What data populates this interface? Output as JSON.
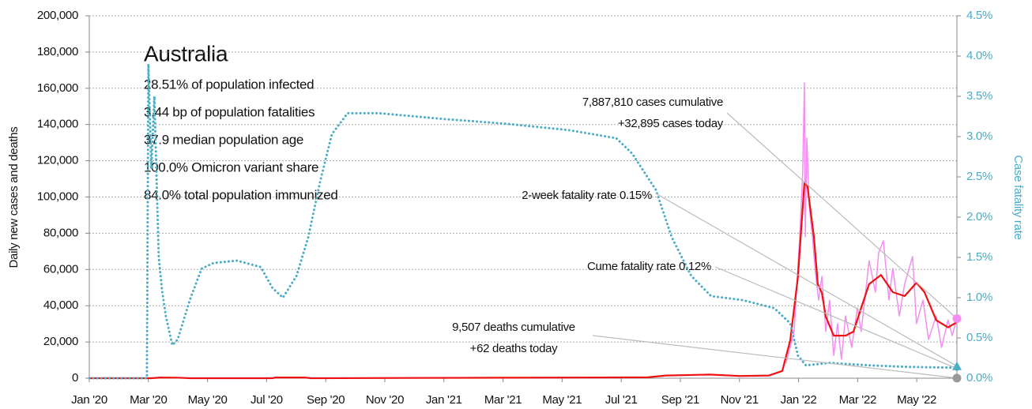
{
  "chart_data": {
    "type": "line",
    "title": "Australia",
    "stats": [
      "28.51% of population infected",
      "3.44 bp of population fatalities",
      "37.9 median population age",
      "100.0% Omicron variant share",
      "84.0% total population immunized"
    ],
    "ylabel": "Daily new cases and deaths",
    "y2label": "Case fatality rate",
    "grid": true,
    "xlim": [
      0,
      29.36
    ],
    "xticks": [
      {
        "value": 0,
        "label": "Jan '20"
      },
      {
        "value": 2,
        "label": "Mar '20"
      },
      {
        "value": 4,
        "label": "May '20"
      },
      {
        "value": 6,
        "label": "Jul '20"
      },
      {
        "value": 8,
        "label": "Sep '20"
      },
      {
        "value": 10,
        "label": "Nov '20"
      },
      {
        "value": 12,
        "label": "Jan '21"
      },
      {
        "value": 14,
        "label": "Mar '21"
      },
      {
        "value": 16,
        "label": "May '21"
      },
      {
        "value": 18,
        "label": "Jul '21"
      },
      {
        "value": 20,
        "label": "Sep '21"
      },
      {
        "value": 22,
        "label": "Nov '21"
      },
      {
        "value": 24,
        "label": "Jan '22"
      },
      {
        "value": 26,
        "label": "Mar '22"
      },
      {
        "value": 28,
        "label": "May '22"
      }
    ],
    "ylim": [
      0,
      200000
    ],
    "yticks": [
      0,
      {
        "value": 20000,
        "label": "20,000"
      },
      {
        "value": 40000,
        "label": "40,000"
      },
      {
        "value": 60000,
        "label": "60,000"
      },
      {
        "value": 80000,
        "label": "80,000"
      },
      {
        "value": 100000,
        "label": "100,000"
      },
      {
        "value": 120000,
        "label": "120,000"
      },
      {
        "value": 140000,
        "label": "140,000"
      },
      {
        "value": 160000,
        "label": "160,000"
      },
      {
        "value": 180000,
        "label": "180,000"
      },
      {
        "value": 200000,
        "label": "200,000"
      }
    ],
    "y2lim": [
      0,
      4.5
    ],
    "y2ticks": [
      {
        "value": 0,
        "label": "0.0%"
      },
      {
        "value": 0.5,
        "label": "0.5%"
      },
      {
        "value": 1,
        "label": "1.0%"
      },
      {
        "value": 1.5,
        "label": "1.5%"
      },
      {
        "value": 2,
        "label": "2.0%"
      },
      {
        "value": 2.5,
        "label": "2.5%"
      },
      {
        "value": 3,
        "label": "3.0%"
      },
      {
        "value": 3.5,
        "label": "3.5%"
      },
      {
        "value": 4,
        "label": "4.0%"
      },
      {
        "value": 4.5,
        "label": "4.5%"
      }
    ],
    "series": [
      {
        "color": "#f38ef0",
        "style": "solid",
        "width": 1.5,
        "x": [
          23.58,
          23.85,
          24.04,
          24.14,
          24.2,
          24.23,
          24.28,
          24.36,
          24.47,
          24.57,
          24.68,
          24.79,
          24.92,
          25.05,
          25.19,
          25.32,
          25.45,
          25.59,
          25.8,
          25.99,
          26.12,
          26.39,
          26.6,
          26.71,
          26.87,
          27.06,
          27.19,
          27.41,
          27.59,
          27.86,
          27.99,
          28.21,
          28.4,
          28.66,
          28.84,
          29.06,
          29.2,
          29.36
        ],
        "values": [
          8300,
          25700,
          78000,
          112900,
          163000,
          78000,
          132500,
          95400,
          78000,
          58400,
          43100,
          56200,
          25700,
          43100,
          12600,
          30100,
          10500,
          34400,
          17000,
          38800,
          25700,
          64900,
          47500,
          69300,
          75800,
          43100,
          60600,
          34400,
          51900,
          67100,
          30100,
          43100,
          21400,
          34400,
          17000,
          32200,
          23500,
          33100
        ]
      },
      {
        "color": "#ee1111",
        "style": "solid",
        "width": 2.2,
        "x": [
          0,
          2.1,
          2.4,
          3.0,
          3.4,
          6.2,
          6.3,
          7.3,
          7.5,
          18.9,
          19.5,
          21.0,
          22.0,
          23.0,
          23.45,
          23.72,
          23.98,
          24.2,
          24.3,
          24.52,
          24.65,
          24.79,
          24.92,
          25.19,
          25.59,
          25.86,
          26.12,
          26.39,
          26.79,
          27.19,
          27.59,
          27.99,
          28.26,
          28.66,
          29.06,
          29.36
        ],
        "values": [
          0,
          0,
          400,
          300,
          0,
          0,
          400,
          400,
          0,
          500,
          1500,
          2000,
          1200,
          1500,
          4000,
          21000,
          56000,
          108000,
          106000,
          78000,
          52000,
          47000,
          34000,
          23500,
          23500,
          25700,
          38800,
          52000,
          57000,
          47500,
          45300,
          52700,
          47500,
          32000,
          28000,
          31000
        ]
      },
      {
        "color": "#4bacc6",
        "style": "dotted",
        "width": 3,
        "axis": "y2",
        "x": [
          0,
          1.95,
          2.0,
          2.1,
          2.2,
          2.35,
          2.46,
          2.59,
          2.81,
          2.99,
          3.4,
          3.8,
          4.2,
          5.0,
          5.8,
          6.2,
          6.55,
          7.01,
          7.41,
          7.81,
          8.21,
          8.74,
          9.81,
          11.95,
          14.09,
          16.23,
          17.83,
          18.37,
          19.17,
          19.71,
          20.37,
          21.04,
          22.11,
          23.18,
          23.72,
          23.98,
          24.25,
          25.05,
          26.39,
          27.73,
          29.36
        ],
        "values": [
          0,
          0,
          3.9,
          2.6,
          3.5,
          1.5,
          1.1,
          0.77,
          0.41,
          0.48,
          0.97,
          1.36,
          1.43,
          1.46,
          1.38,
          1.12,
          1.0,
          1.27,
          1.75,
          2.44,
          3.03,
          3.29,
          3.29,
          3.22,
          3.16,
          3.08,
          2.98,
          2.79,
          2.34,
          1.75,
          1.27,
          1.02,
          0.97,
          0.87,
          0.68,
          0.28,
          0.16,
          0.19,
          0.16,
          0.14,
          0.13
        ]
      }
    ],
    "annotations": [
      {
        "text": [
          "7,887,810 cases cumulative",
          "+32,895 cases today"
        ],
        "value": 32895,
        "axis": "y",
        "color": "#f38ef0",
        "marker": "circle"
      },
      {
        "text": [
          "2-week fatality rate 0.15%"
        ],
        "value": 0.15,
        "axis": "y2",
        "color": "#4bacc6",
        "marker": "triangle"
      },
      {
        "text": [
          "Cume fatality rate 0.12%"
        ],
        "value": 0.12,
        "axis": "y2",
        "color": "#4bacc6",
        "marker": "dot"
      },
      {
        "text": [
          "9,507 deaths cumulative",
          "+62 deaths today"
        ],
        "value": 62,
        "axis": "y",
        "color": "#999999",
        "marker": "circle"
      }
    ]
  }
}
